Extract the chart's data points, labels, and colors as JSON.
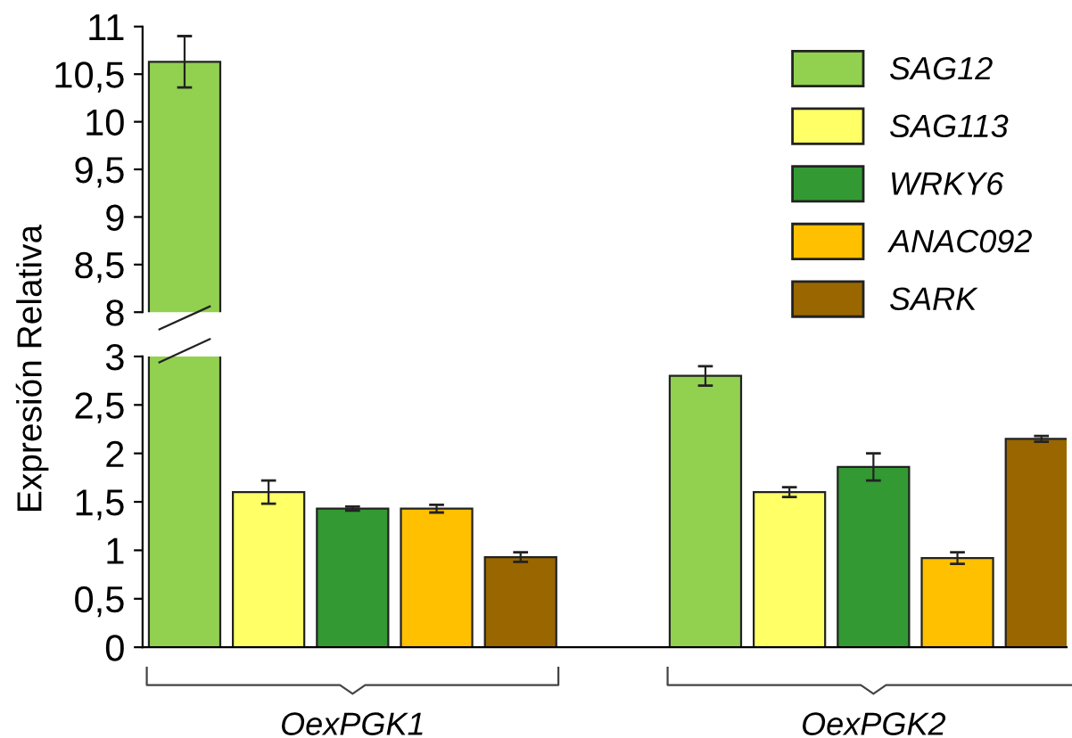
{
  "chart_data": [
    {
      "type": "bar",
      "ylim": [
        8,
        11
      ],
      "yticks": [
        8,
        {
          "value": 8.5,
          "label": "8,5"
        },
        9,
        {
          "value": 9.5,
          "label": "9,5"
        },
        10,
        {
          "value": 10.5,
          "label": "10,5"
        },
        11
      ],
      "tick_labels": "y",
      "series": [
        {
          "color": "#92d050",
          "values": [
            10.63,
            null
          ],
          "errors": [
            0.27,
            null
          ]
        }
      ]
    },
    {
      "type": "bar",
      "categories": [
        "OexPGK1",
        "OexPGK2"
      ],
      "ylabel": "Expresión Relativa",
      "ylim": [
        0,
        3
      ],
      "yticks": [
        0,
        {
          "value": 0.5,
          "label": "0,5"
        },
        1,
        {
          "value": 1.5,
          "label": "1,5"
        },
        2,
        {
          "value": 2.5,
          "label": "2,5"
        },
        3
      ],
      "legend": "top right",
      "series": [
        {
          "name": "SAG12",
          "color": "#92d050",
          "values": [
            null,
            2.8
          ],
          "errors": [
            null,
            0.1
          ]
        },
        {
          "name": "SAG113",
          "color": "#ffff66",
          "values": [
            1.6,
            1.6
          ],
          "errors": [
            0.12,
            0.05
          ]
        },
        {
          "name": "WRKY6",
          "color": "#339933",
          "values": [
            1.43,
            1.86
          ],
          "errors": [
            0.02,
            0.14
          ]
        },
        {
          "name": "ANAC092",
          "color": "#ffc000",
          "values": [
            1.43,
            0.92
          ],
          "errors": [
            0.04,
            0.06
          ]
        },
        {
          "name": "SARK",
          "color": "#996600",
          "values": [
            0.93,
            2.15
          ],
          "errors": [
            0.05,
            0.03
          ]
        }
      ]
    }
  ]
}
